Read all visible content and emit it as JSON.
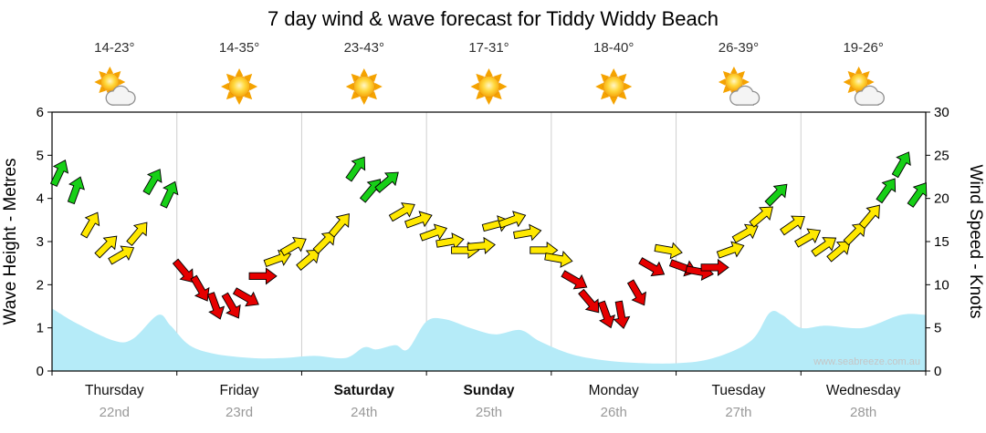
{
  "title": "7 day wind & wave forecast for Tiddy Widdy Beach",
  "watermark": "www.seabreeze.com.au",
  "axes": {
    "left_title": "Wave Height - Metres",
    "right_title": "Wind Speed - Knots",
    "left_ticks": [
      0,
      1,
      2,
      3,
      4,
      5,
      6
    ],
    "right_ticks": [
      0,
      5,
      10,
      15,
      20,
      25,
      30
    ]
  },
  "days": [
    {
      "name": "Thursday",
      "date": "22nd",
      "temp": "14-23°",
      "icon": "sun-cloud-icon",
      "bold": false
    },
    {
      "name": "Friday",
      "date": "23rd",
      "temp": "14-35°",
      "icon": "sun-icon",
      "bold": false
    },
    {
      "name": "Saturday",
      "date": "24th",
      "temp": "23-43°",
      "icon": "sun-icon",
      "bold": true
    },
    {
      "name": "Sunday",
      "date": "25th",
      "temp": "17-31°",
      "icon": "sun-icon",
      "bold": true
    },
    {
      "name": "Monday",
      "date": "26th",
      "temp": "18-40°",
      "icon": "sun-icon",
      "bold": false
    },
    {
      "name": "Tuesday",
      "date": "27th",
      "temp": "26-39°",
      "icon": "sun-cloud-icon",
      "bold": false
    },
    {
      "name": "Wednesday",
      "date": "28th",
      "temp": "19-26°",
      "icon": "sun-cloud-icon",
      "bold": false
    }
  ],
  "colors": {
    "wind_light_red": "#E60000",
    "wind_moderate_yellow": "#FFE800",
    "wind_fresh_green": "#17CF17",
    "wave_fill": "#B5EBF8",
    "grid": "#CFCFCF",
    "axis": "#000000",
    "date_text": "#999999",
    "watermark": "#C5C5C5"
  },
  "chart_data": [
    {
      "type": "area",
      "name": "wave_height",
      "ylabel": "Wave Height - Metres",
      "ylim": [
        0,
        6
      ],
      "x_units": "days_from_thursday",
      "x": [
        0,
        0.2,
        0.5,
        0.65,
        0.85,
        0.95,
        1.1,
        1.3,
        1.6,
        1.85,
        2.1,
        2.35,
        2.5,
        2.6,
        2.75,
        2.85,
        3.0,
        3.15,
        3.35,
        3.55,
        3.75,
        3.9,
        4.1,
        4.3,
        4.6,
        5.0,
        5.3,
        5.6,
        5.75,
        5.85,
        6.0,
        6.2,
        6.5,
        6.8,
        7.0
      ],
      "y": [
        1.45,
        1.1,
        0.7,
        0.75,
        1.3,
        1.05,
        0.6,
        0.4,
        0.3,
        0.3,
        0.35,
        0.3,
        0.55,
        0.5,
        0.6,
        0.5,
        1.15,
        1.2,
        1.0,
        0.85,
        0.95,
        0.7,
        0.45,
        0.3,
        0.2,
        0.18,
        0.3,
        0.7,
        1.35,
        1.3,
        1.0,
        1.05,
        1.0,
        1.3,
        1.3
      ]
    },
    {
      "type": "scatter",
      "name": "wind_speed_arrows",
      "ylabel": "Wind Speed - Knots",
      "ylim": [
        0,
        30
      ],
      "x_units": "days_from_thursday",
      "color_thresholds": {
        "red_max_kt": 12,
        "yellow_max_kt": 19
      },
      "x": [
        0.06,
        0.19,
        0.31,
        0.44,
        0.56,
        0.69,
        0.81,
        0.94,
        1.06,
        1.19,
        1.31,
        1.44,
        1.56,
        1.69,
        1.81,
        1.94,
        2.06,
        2.19,
        2.31,
        2.44,
        2.56,
        2.69,
        2.81,
        2.94,
        3.06,
        3.19,
        3.31,
        3.44,
        3.56,
        3.69,
        3.81,
        3.94,
        4.06,
        4.19,
        4.31,
        4.44,
        4.56,
        4.69,
        4.81,
        4.94,
        5.06,
        5.19,
        5.31,
        5.44,
        5.56,
        5.69,
        5.81,
        5.94,
        6.06,
        6.19,
        6.31,
        6.44,
        6.56,
        6.69,
        6.81,
        6.94
      ],
      "y": [
        23,
        21,
        17,
        14.5,
        13.5,
        16,
        22,
        20.5,
        11.5,
        9.5,
        7.5,
        7.5,
        8.5,
        11,
        13,
        14.5,
        13,
        15,
        17,
        23.5,
        21,
        22,
        18.5,
        17.5,
        16,
        15,
        14,
        14.5,
        17,
        17.5,
        16,
        14,
        13,
        10.5,
        8,
        6.5,
        6.5,
        9,
        12,
        14,
        12,
        11.5,
        12,
        14,
        16,
        18,
        20.5,
        17,
        15.5,
        14.5,
        14,
        16,
        18,
        21,
        24,
        20.5
      ],
      "dir_deg": [
        25,
        20,
        30,
        45,
        60,
        40,
        30,
        25,
        140,
        150,
        160,
        150,
        120,
        90,
        70,
        60,
        50,
        45,
        40,
        35,
        40,
        50,
        60,
        70,
        70,
        80,
        90,
        85,
        75,
        70,
        80,
        90,
        100,
        120,
        140,
        160,
        170,
        150,
        120,
        100,
        110,
        100,
        90,
        70,
        60,
        50,
        45,
        55,
        60,
        55,
        50,
        45,
        40,
        35,
        30,
        35
      ]
    }
  ]
}
